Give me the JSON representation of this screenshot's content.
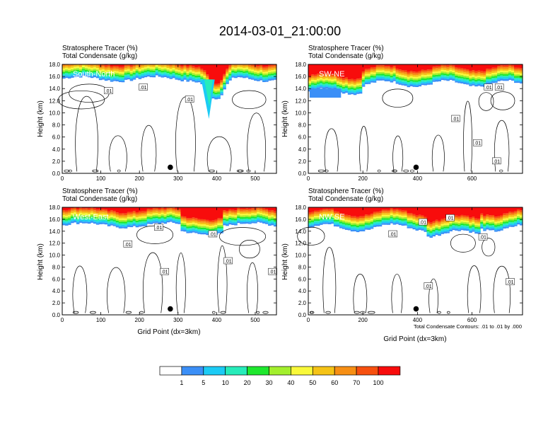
{
  "page_title": "2014-03-01_21:00:00",
  "panels": [
    {
      "section_label": "South-North",
      "title_line1": "Stratosphere Tracer   (%)",
      "title_line2": "Total Condensate   (g/kg)",
      "ylabel": "Height (km)",
      "xlabel": "",
      "x_range": [
        0,
        555
      ],
      "x_ticks": [
        "0",
        "100",
        "200",
        "300",
        "400",
        "500"
      ],
      "x_tick_values": [
        0,
        100,
        200,
        300,
        400,
        500
      ],
      "y_ticks": [
        "0.0",
        "2.0",
        "4.0",
        "6.0",
        "8.0",
        "10.0",
        "12.0",
        "14.0",
        "16.0",
        "18.0"
      ],
      "y_tick_values": [
        0,
        2,
        4,
        6,
        8,
        10,
        12,
        14,
        16,
        18
      ],
      "marker": {
        "x": 280,
        "y": 1.0
      },
      "contour_labels": [
        {
          "text": ".01",
          "x": 120,
          "y": 13.6
        },
        {
          "text": ".01",
          "x": 210,
          "y": 14.2
        },
        {
          "text": ".01",
          "x": 330,
          "y": 12.2
        }
      ],
      "footnote": ""
    },
    {
      "section_label": "SW-NE",
      "title_line1": "Stratosphere Tracer   (%)",
      "title_line2": "Total Condensate   (g/kg)",
      "ylabel": "Height (km)",
      "xlabel": "",
      "x_range": [
        0,
        785
      ],
      "x_ticks": [
        "0",
        "200",
        "400",
        "600"
      ],
      "x_tick_values": [
        0,
        200,
        400,
        600
      ],
      "y_ticks": [
        "0.0",
        "2.0",
        "4.0",
        "6.0",
        "8.0",
        "10.0",
        "12.0",
        "14.0",
        "16.0",
        "18.0"
      ],
      "y_tick_values": [
        0,
        2,
        4,
        6,
        8,
        10,
        12,
        14,
        16,
        18
      ],
      "marker": {
        "x": 395,
        "y": 1.0
      },
      "contour_labels": [
        {
          "text": ".01",
          "x": 660,
          "y": 14.2
        },
        {
          "text": ".01",
          "x": 700,
          "y": 14.2
        },
        {
          "text": ".01",
          "x": 540,
          "y": 9.0
        },
        {
          "text": ".01",
          "x": 620,
          "y": 5.0
        },
        {
          "text": ".01",
          "x": 690,
          "y": 2.0
        }
      ],
      "footnote": ""
    },
    {
      "section_label": "West-East",
      "title_line1": "Stratosphere Tracer   (%)",
      "title_line2": "Total Condensate   (g/kg)",
      "ylabel": "Height (km)",
      "xlabel": "Grid Point (dx=3km)",
      "x_range": [
        0,
        555
      ],
      "x_ticks": [
        "0",
        "100",
        "200",
        "300",
        "400",
        "500"
      ],
      "x_tick_values": [
        0,
        100,
        200,
        300,
        400,
        500
      ],
      "y_ticks": [
        "0.0",
        "2.0",
        "4.0",
        "6.0",
        "8.0",
        "10.0",
        "12.0",
        "14.0",
        "16.0",
        "18.0"
      ],
      "y_tick_values": [
        0,
        2,
        4,
        6,
        8,
        10,
        12,
        14,
        16,
        18
      ],
      "marker": {
        "x": 280,
        "y": 1.0
      },
      "contour_labels": [
        {
          "text": ".01",
          "x": 170,
          "y": 11.8
        },
        {
          "text": ".01",
          "x": 265,
          "y": 7.2
        },
        {
          "text": ".01",
          "x": 430,
          "y": 9.0
        },
        {
          "text": ".01",
          "x": 545,
          "y": 7.2
        },
        {
          "text": ".01",
          "x": 250,
          "y": 14.6
        },
        {
          "text": ".01",
          "x": 390,
          "y": 13.5
        }
      ],
      "footnote": ""
    },
    {
      "section_label": "NW-SE",
      "title_line1": "Stratosphere Tracer   (%)",
      "title_line2": "Total Condensate   (g/kg)",
      "ylabel": "Height (km)",
      "xlabel": "Grid Point (dx=3km)",
      "x_range": [
        0,
        785
      ],
      "x_ticks": [
        "0",
        "200",
        "400",
        "600"
      ],
      "x_tick_values": [
        0,
        200,
        400,
        600
      ],
      "y_ticks": [
        "0.0",
        "2.0",
        "4.0",
        "6.0",
        "8.0",
        "10.0",
        "12.0",
        "14.0",
        "16.0",
        "18.0"
      ],
      "y_tick_values": [
        0,
        2,
        4,
        6,
        8,
        10,
        12,
        14,
        16,
        18
      ],
      "marker": {
        "x": 395,
        "y": 1.0
      },
      "contour_labels": [
        {
          "text": ".01",
          "x": 420,
          "y": 15.5
        },
        {
          "text": ".01",
          "x": 520,
          "y": 16.2
        },
        {
          "text": ".01",
          "x": 310,
          "y": 13.5
        },
        {
          "text": ".01",
          "x": 640,
          "y": 13.0
        },
        {
          "text": ".01",
          "x": 440,
          "y": 4.8
        },
        {
          "text": ".01",
          "x": 740,
          "y": 5.5
        }
      ],
      "footnote": "Total Condensate Contours: .01 to .01 by .000"
    }
  ],
  "chart_data": {
    "type": "heatmap",
    "title": "2014-03-01_21:00:00",
    "fill_variable": "Stratosphere Tracer (%)",
    "contour_variable": "Total Condensate (g/kg)",
    "ylabel": "Height (km)",
    "xlabel": "Grid Point (dx=3km)",
    "ylim": [
      0,
      18
    ],
    "colorbar": {
      "labels": [
        "1",
        "5",
        "10",
        "20",
        "30",
        "40",
        "50",
        "60",
        "70",
        "100"
      ],
      "levels": [
        1,
        5,
        10,
        20,
        30,
        40,
        50,
        60,
        70,
        100
      ],
      "colors": [
        "#ffffff",
        "#3b8ff7",
        "#1ccbf5",
        "#27ecba",
        "#1ee82e",
        "#a3ef2d",
        "#f9f93a",
        "#f5c316",
        "#f78f14",
        "#f7500f",
        "#f80c0c"
      ]
    },
    "series": [
      {
        "name": "South-North",
        "x_range": [
          0,
          555
        ],
        "tropopause_km_approx": 15.5
      },
      {
        "name": "SW-NE",
        "x_range": [
          0,
          785
        ],
        "tropopause_km_approx": 15.0
      },
      {
        "name": "West-East",
        "x_range": [
          0,
          555
        ],
        "tropopause_km_approx": 15.0
      },
      {
        "name": "NW-SE",
        "x_range": [
          0,
          785
        ],
        "tropopause_km_approx": 14.5
      }
    ]
  }
}
